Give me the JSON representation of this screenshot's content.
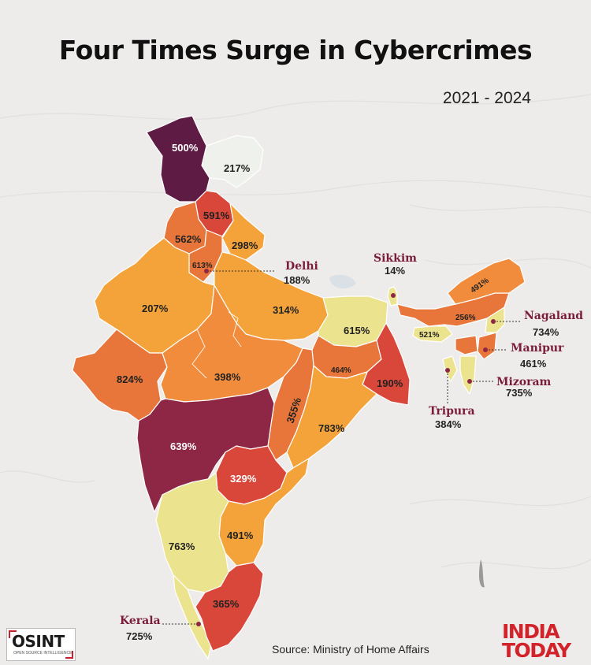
{
  "title": "Four Times Surge in Cybercrimes",
  "period": "2021 - 2024",
  "source": "Source: Ministry of Home Affairs",
  "logos": {
    "osint": "OSINT",
    "osint_sub": "OPEN SOURCE INTELLIGENCE",
    "publisher_line1": "INDIA",
    "publisher_line2": "TODAY"
  },
  "colors": {
    "lowest": "#eef1ec",
    "low": "#ece38e",
    "mid": "#f3a33a",
    "midhigh": "#e8763a",
    "high": "#d9473a",
    "highest_a": "#8e2646",
    "highest_b": "#5e1c45",
    "callout_name": "#7a1c3c"
  },
  "region_values": {
    "ladakh": "217%",
    "jammu_kashmir": "500%",
    "himachal": "591%",
    "punjab": "562%",
    "haryana": "613%",
    "uttarakhand": "298%",
    "rajasthan": "207%",
    "uttar_pradesh": "314%",
    "bihar": "615%",
    "gujarat": "824%",
    "madhya_pradesh": "398%",
    "jharkhand": "464%",
    "west_bengal": "190%",
    "chhattisgarh": "355%",
    "odisha": "783%",
    "maharashtra": "639%",
    "telangana": "329%",
    "karnataka": "763%",
    "andhra_pradesh": "491%",
    "tamil_nadu": "365%",
    "assam": "256%",
    "arunachal": "491%",
    "meghalaya": "521%"
  },
  "callouts": {
    "delhi": {
      "name": "Delhi",
      "value": "188%"
    },
    "sikkim": {
      "name": "Sikkim",
      "value": "14%"
    },
    "nagaland": {
      "name": "Nagaland",
      "value": "734%"
    },
    "manipur": {
      "name": "Manipur",
      "value": "461%"
    },
    "mizoram": {
      "name": "Mizoram",
      "value": "735%"
    },
    "tripura": {
      "name": "Tripura",
      "value": "384%"
    },
    "kerala": {
      "name": "Kerala",
      "value": "725%"
    }
  }
}
